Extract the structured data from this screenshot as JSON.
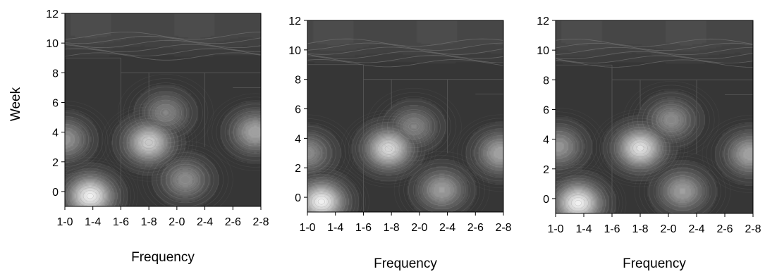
{
  "chart_data": [
    {
      "type": "heatmap",
      "xlabel": "Frequency",
      "ylabel": "Week",
      "x_tick_labels": [
        "1-0",
        "1-4",
        "1-6",
        "1-8",
        "2-0",
        "2-4",
        "2-6",
        "2-8"
      ],
      "y_ticks": [
        0,
        2,
        4,
        6,
        8,
        10,
        12
      ],
      "xlim": [
        0,
        7
      ],
      "ylim": [
        -1,
        12
      ],
      "grid": false,
      "colors": {
        "base": "#363636",
        "top_band": "#575757",
        "peak": "#f0f0f0"
      },
      "hotspots": [
        {
          "x": 0.9,
          "y": -0.3,
          "intensity": 1.0
        },
        {
          "x": 3.0,
          "y": 3.3,
          "intensity": 0.82
        },
        {
          "x": 4.3,
          "y": 0.8,
          "intensity": 0.45
        },
        {
          "x": 6.8,
          "y": 4.0,
          "intensity": 0.6
        },
        {
          "x": 0.0,
          "y": 3.5,
          "intensity": 0.5
        },
        {
          "x": 3.6,
          "y": 5.3,
          "intensity": 0.4
        }
      ]
    },
    {
      "type": "heatmap",
      "xlabel": "Frequency",
      "ylabel": "",
      "x_tick_labels": [
        "1-0",
        "1-4",
        "1-6",
        "1-8",
        "2-0",
        "2-4",
        "2-6",
        "2-8"
      ],
      "y_ticks": [
        0,
        2,
        4,
        6,
        8,
        10,
        12
      ],
      "xlim": [
        0,
        7
      ],
      "ylim": [
        -1,
        12
      ],
      "grid": false,
      "colors": {
        "base": "#363636",
        "top_band": "#575757",
        "peak": "#f0f0f0"
      },
      "hotspots": [
        {
          "x": 0.5,
          "y": -0.3,
          "intensity": 1.0
        },
        {
          "x": 2.9,
          "y": 3.3,
          "intensity": 0.88
        },
        {
          "x": 4.8,
          "y": 0.5,
          "intensity": 0.55
        },
        {
          "x": 6.9,
          "y": 3.0,
          "intensity": 0.6
        },
        {
          "x": 0.0,
          "y": 3.0,
          "intensity": 0.45
        },
        {
          "x": 3.8,
          "y": 4.8,
          "intensity": 0.4
        }
      ]
    },
    {
      "type": "heatmap",
      "xlabel": "Frequency",
      "ylabel": "",
      "x_tick_labels": [
        "1-0",
        "1-4",
        "1-6",
        "1-8",
        "2-0",
        "2-4",
        "2-6",
        "2-8"
      ],
      "y_ticks": [
        0,
        2,
        4,
        6,
        8,
        10,
        12
      ],
      "xlim": [
        0,
        7
      ],
      "ylim": [
        -1,
        12
      ],
      "grid": false,
      "colors": {
        "base": "#363636",
        "top_band": "#575757",
        "peak": "#f0f0f0"
      },
      "hotspots": [
        {
          "x": 0.8,
          "y": -0.3,
          "intensity": 1.0
        },
        {
          "x": 3.0,
          "y": 3.4,
          "intensity": 0.92
        },
        {
          "x": 4.5,
          "y": 0.5,
          "intensity": 0.55
        },
        {
          "x": 6.9,
          "y": 3.0,
          "intensity": 0.6
        },
        {
          "x": 0.1,
          "y": 3.5,
          "intensity": 0.5
        },
        {
          "x": 4.1,
          "y": 5.3,
          "intensity": 0.45
        }
      ]
    }
  ]
}
